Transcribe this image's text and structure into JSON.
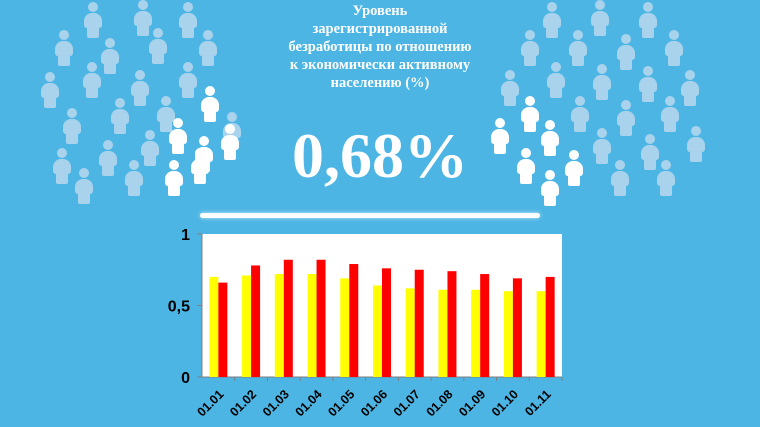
{
  "header": {
    "title": "Уровень\nзарегистрированной\nбезработицы по отношению\nк экономически активному\nнаселению (%)",
    "value": "0,68%"
  },
  "colors": {
    "background": "#4cb5e4",
    "series_yellow": "#ffff00",
    "series_red": "#ff0000",
    "people_pale": "#a9d3ec",
    "people_white": "#ffffff"
  },
  "icons": [
    "person-icon"
  ],
  "chart_data": {
    "type": "bar",
    "categories": [
      "01.01",
      "01.02",
      "01.03",
      "01.04",
      "01.05",
      "01.06",
      "01.07",
      "01.08",
      "01.09",
      "01.10",
      "01.11"
    ],
    "series": [
      {
        "color": "#ffff00",
        "values": [
          0.7,
          0.71,
          0.72,
          0.72,
          0.69,
          0.64,
          0.62,
          0.61,
          0.61,
          0.6,
          0.6
        ]
      },
      {
        "color": "#ff0000",
        "values": [
          0.66,
          0.78,
          0.82,
          0.82,
          0.79,
          0.76,
          0.75,
          0.74,
          0.72,
          0.69,
          0.7
        ]
      }
    ],
    "yticks": [
      "0",
      "0,5",
      "1"
    ],
    "ylim": [
      0,
      1
    ],
    "grid": false,
    "legend": "none",
    "xlabel": "",
    "ylabel": ""
  }
}
